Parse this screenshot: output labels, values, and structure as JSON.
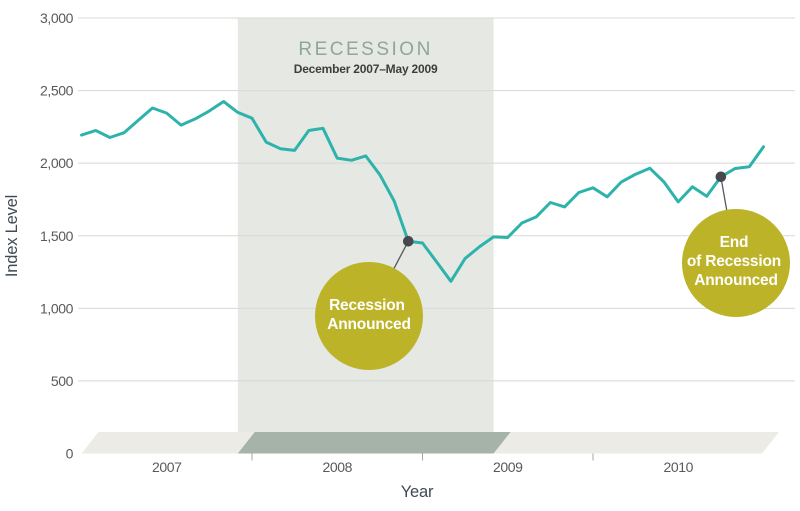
{
  "page": {
    "background": "#ffffff"
  },
  "colors": {
    "line": "#2db3ab",
    "recession_band": "#e5e8e3",
    "recession_title": "#8fa69b",
    "recession_subtitle": "#3d3e3f",
    "floor": "#ecebe6",
    "floor_recession": "#a6b3a8",
    "bubble": "#bcb329",
    "bubble_text": "#ffffff",
    "marker_dot": "#45494e",
    "connector": "#53585c",
    "gridline": "#d8d8d6",
    "x_tick": "#a3a8a8",
    "tick_label": "#58595b",
    "axis_title": "#3e4a56"
  },
  "chart_data": {
    "type": "line",
    "title": "",
    "xlabel": "Year",
    "ylabel": "Index Level",
    "start_month": "2007-01",
    "frequency": "monthly",
    "values": [
      2193,
      2225,
      2177,
      2210,
      2295,
      2380,
      2345,
      2262,
      2305,
      2360,
      2425,
      2350,
      2310,
      2145,
      2100,
      2088,
      2225,
      2240,
      2035,
      2020,
      2050,
      1920,
      1740,
      1462,
      1450,
      1319,
      1186,
      1343,
      1423,
      1492,
      1488,
      1588,
      1630,
      1729,
      1699,
      1798,
      1830,
      1768,
      1871,
      1924,
      1965,
      1870,
      1733,
      1837,
      1772,
      1906,
      1963,
      1975,
      2113
    ],
    "ylim": [
      0,
      3000
    ],
    "yticks": [
      0,
      500,
      1000,
      1500,
      2000,
      2500,
      3000
    ],
    "ytick_labels": [
      "0",
      "500",
      "1,000",
      "1,500",
      "2,000",
      "2,500",
      "3,000"
    ],
    "xtick_labels": [
      "2007",
      "2008",
      "2009",
      "2010"
    ],
    "grid": "horizontal",
    "legend": "none",
    "recession": {
      "title": "RECESSION",
      "subtitle": "December 2007–May 2009",
      "start": "2007-12",
      "end_exclusive": "2009-06"
    },
    "annotations": [
      {
        "label_lines": [
          "Recession",
          "Announced"
        ],
        "month": "2008-12",
        "value": 1462
      },
      {
        "label_lines": [
          "End",
          "of Recession",
          "Announced"
        ],
        "month": "2010-10",
        "value": 1906
      }
    ]
  }
}
